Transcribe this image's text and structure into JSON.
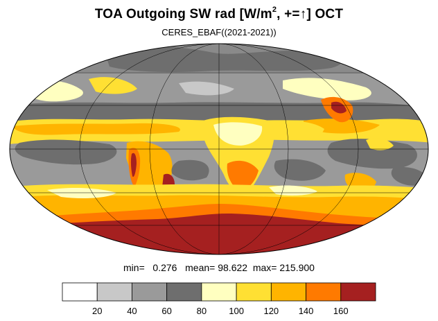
{
  "title": {
    "main": "TOA Outgoing SW rad [W/m",
    "sup": "2",
    "rest": ", +=",
    "arrow": "↑",
    "end": "] OCT"
  },
  "subtitle": "CERES_EBAF((2021-2021))",
  "stats": {
    "min_label": "min=",
    "min": "0.276",
    "mean_label": "mean=",
    "mean": "98.622",
    "max_label": "max=",
    "max": "215.900"
  },
  "colorbar": {
    "colors": [
      "#ffffff",
      "#c8c8c8",
      "#9a9a9a",
      "#6e6e6e",
      "#ffffc0",
      "#ffe033",
      "#ffb400",
      "#ff7a00",
      "#a52020"
    ],
    "labels": [
      "20",
      "40",
      "60",
      "80",
      "100",
      "120",
      "140",
      "160"
    ]
  },
  "map": {
    "projection": "Mollweide",
    "colors": {
      "tropics_low": "#6e6e6e",
      "midlat": "#9a9a9a",
      "light": "#ffffc0",
      "yellow": "#ffe033",
      "orange": "#ffb400",
      "deep_orange": "#ff7a00",
      "antarctic": "#a52020"
    }
  }
}
